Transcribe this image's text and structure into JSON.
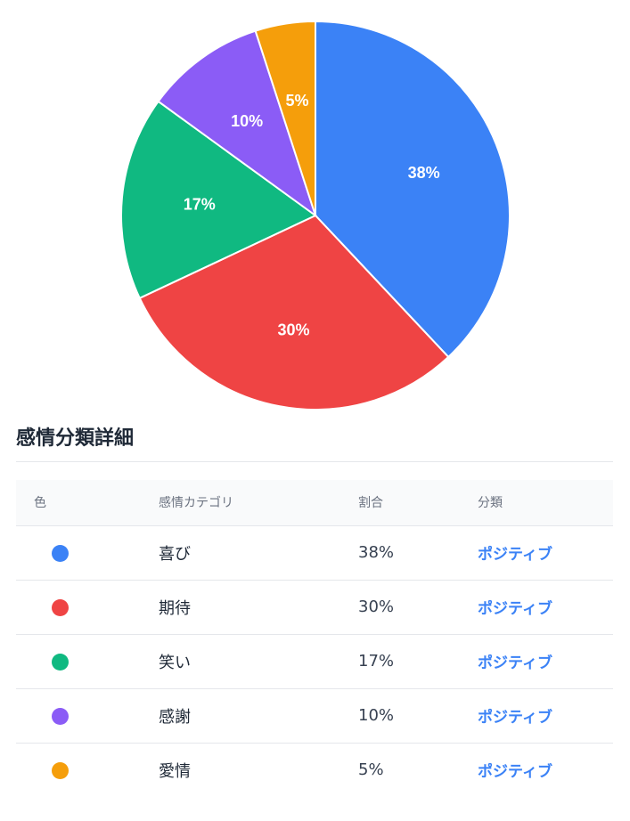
{
  "chart_data": {
    "type": "pie",
    "categories": [
      "喜び",
      "期待",
      "笑い",
      "感謝",
      "愛情"
    ],
    "values": [
      38,
      30,
      17,
      10,
      5
    ],
    "labels": [
      "38%",
      "30%",
      "17%",
      "10%",
      "5%"
    ],
    "colors": [
      "#3b82f6",
      "#ef4444",
      "#10b981",
      "#8b5cf6",
      "#f59e0b"
    ],
    "start": "12 o'clock",
    "direction": "clockwise",
    "legend": "none"
  },
  "section": {
    "title": "感情分類詳細"
  },
  "table": {
    "headers": {
      "color": "色",
      "category": "感情カテゴリ",
      "ratio": "割合",
      "class": "分類"
    },
    "rows": [
      {
        "color": "#3b82f6",
        "category": "喜び",
        "ratio": "38%",
        "class": "ポジティブ"
      },
      {
        "color": "#ef4444",
        "category": "期待",
        "ratio": "30%",
        "class": "ポジティブ"
      },
      {
        "color": "#10b981",
        "category": "笑い",
        "ratio": "17%",
        "class": "ポジティブ"
      },
      {
        "color": "#8b5cf6",
        "category": "感謝",
        "ratio": "10%",
        "class": "ポジティブ"
      },
      {
        "color": "#f59e0b",
        "category": "愛情",
        "ratio": "5%",
        "class": "ポジティブ"
      }
    ]
  }
}
